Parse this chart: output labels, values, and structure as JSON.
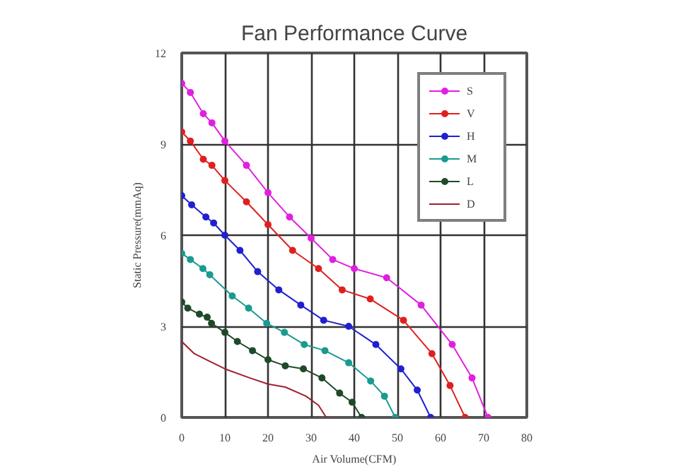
{
  "chart_data": {
    "type": "line",
    "title": "Fan Performance Curve",
    "xlabel": "Air Volume(CFM)",
    "ylabel": "Static Pressure(mmAq)",
    "xlim": [
      0,
      80
    ],
    "ylim": [
      0,
      12
    ],
    "xticks": [
      0,
      10,
      20,
      30,
      40,
      50,
      60,
      70,
      80
    ],
    "yticks": [
      0,
      3,
      6,
      9,
      12
    ],
    "grid": true,
    "legend": "top right",
    "series": [
      {
        "name": "S",
        "color": "#e020e0",
        "marker": "circle",
        "x": [
          0,
          2,
          5,
          7,
          10,
          15,
          20,
          25,
          30,
          35,
          40,
          47.5,
          55.5,
          62.7,
          67.3,
          71
        ],
        "values": [
          11.0,
          10.7,
          10.0,
          9.7,
          9.1,
          8.3,
          7.4,
          6.6,
          5.9,
          5.2,
          4.9,
          4.6,
          3.7,
          2.4,
          1.3,
          0
        ]
      },
      {
        "name": "V",
        "color": "#e02020",
        "marker": "circle",
        "x": [
          0,
          2,
          5,
          7,
          10,
          15,
          20,
          25.7,
          31.7,
          37.2,
          43.7,
          51.4,
          58,
          62.2,
          65.7
        ],
        "values": [
          9.4,
          9.1,
          8.5,
          8.3,
          7.8,
          7.1,
          6.35,
          5.5,
          4.9,
          4.2,
          3.9,
          3.2,
          2.1,
          1.05,
          0
        ]
      },
      {
        "name": "H",
        "color": "#2020d0",
        "marker": "circle",
        "x": [
          0,
          2.3,
          5.6,
          7.4,
          10,
          13.5,
          17.6,
          22.5,
          27.6,
          32.9,
          38.7,
          45,
          50.8,
          54.6,
          57.7
        ],
        "values": [
          7.3,
          7.0,
          6.6,
          6.4,
          6.0,
          5.5,
          4.8,
          4.2,
          3.7,
          3.2,
          3.0,
          2.4,
          1.6,
          0.9,
          0
        ]
      },
      {
        "name": "M",
        "color": "#1a9a90",
        "marker": "circle",
        "x": [
          0,
          2,
          4.9,
          6.5,
          11.7,
          15.5,
          19.7,
          23.8,
          28.4,
          33.2,
          38.7,
          43.8,
          47,
          49.5
        ],
        "values": [
          5.4,
          5.2,
          4.9,
          4.7,
          4.0,
          3.6,
          3.1,
          2.8,
          2.4,
          2.2,
          1.8,
          1.2,
          0.7,
          0
        ]
      },
      {
        "name": "L",
        "color": "#1f4a2a",
        "marker": "circle",
        "x": [
          0,
          1.4,
          4.1,
          5.9,
          6.9,
          10,
          12.9,
          16.4,
          20,
          24,
          28.2,
          32.5,
          36.6,
          39.5,
          41.7
        ],
        "values": [
          3.8,
          3.6,
          3.4,
          3.3,
          3.1,
          2.8,
          2.5,
          2.2,
          1.9,
          1.7,
          1.6,
          1.3,
          0.8,
          0.5,
          0
        ]
      },
      {
        "name": "D",
        "color": "#a02030",
        "marker": "none",
        "x": [
          0,
          2.9,
          10,
          15.8,
          20,
          24,
          28.8,
          31.7,
          33.5
        ],
        "values": [
          2.5,
          2.1,
          1.6,
          1.3,
          1.1,
          1.0,
          0.7,
          0.4,
          0
        ]
      }
    ]
  }
}
